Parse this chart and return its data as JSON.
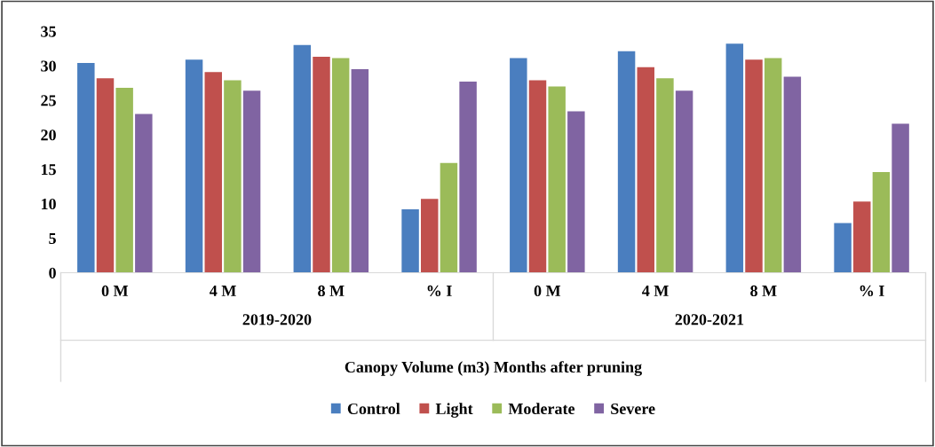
{
  "chart_data": {
    "type": "bar",
    "xlabel": "Canopy Volume (m3) Months after pruning",
    "categories": [
      "0 M",
      "4 M",
      "8 M",
      "% I",
      "0 M",
      "4 M",
      "8 M",
      "% I"
    ],
    "annotations": [
      "2019-2020",
      "2020-2021"
    ],
    "series": [
      {
        "name": "Control",
        "color": "#4a7ebf",
        "values": [
          30.4,
          30.9,
          33.0,
          9.2,
          31.1,
          32.1,
          33.2,
          7.2
        ]
      },
      {
        "name": "Light",
        "color": "#c0504d",
        "values": [
          28.2,
          29.1,
          31.3,
          10.7,
          27.9,
          29.8,
          30.9,
          10.3
        ]
      },
      {
        "name": "Moderate",
        "color": "#9bbb59",
        "values": [
          26.8,
          27.9,
          31.1,
          15.9,
          27.0,
          28.2,
          31.1,
          14.6
        ]
      },
      {
        "name": "Severe",
        "color": "#8064a2",
        "values": [
          23.0,
          26.4,
          29.5,
          27.7,
          23.4,
          26.4,
          28.4,
          21.6
        ]
      }
    ],
    "ylim": [
      0,
      35
    ],
    "yticks": [
      0,
      5,
      10,
      15,
      20,
      25,
      30,
      35
    ],
    "grid": false,
    "legend": "bottom"
  }
}
